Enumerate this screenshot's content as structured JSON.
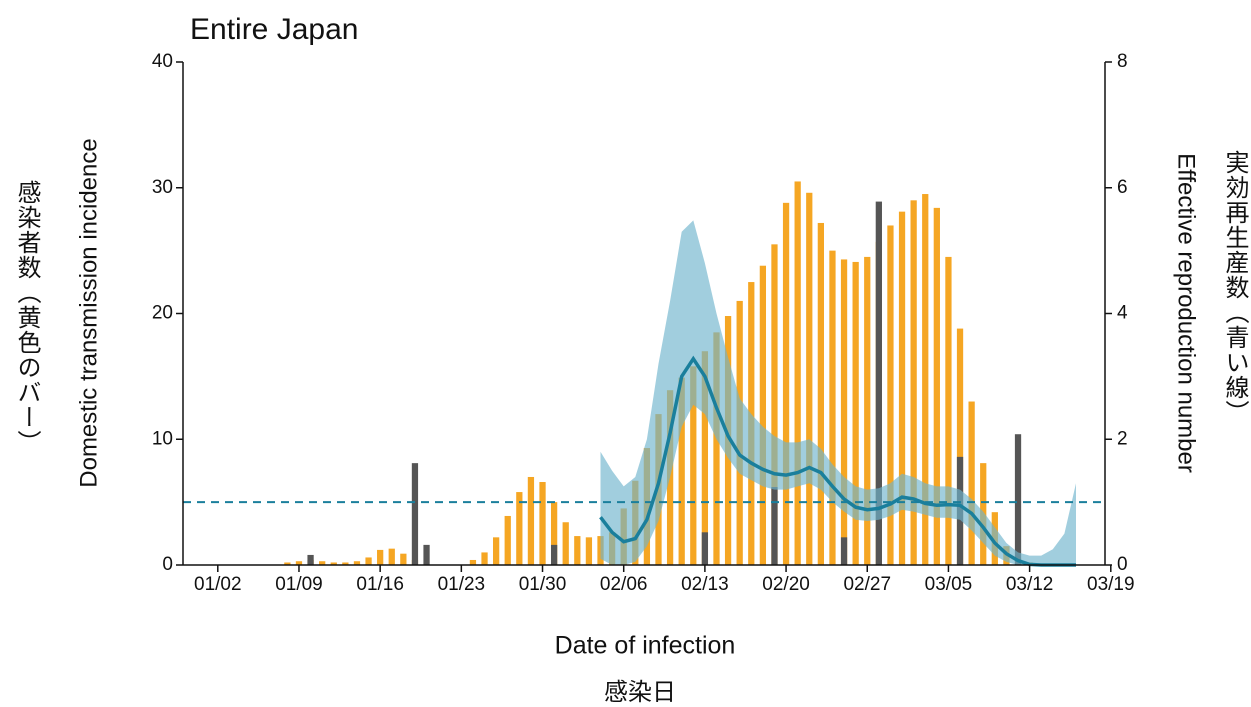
{
  "chart_data": {
    "type": "bar",
    "title": "Entire Japan",
    "ylabel": "Domestic transmission incidence",
    "ylabel_ja": "感染者数（黄色のバー）",
    "y2label": "Effective reproduction number",
    "y2label_ja": "実効再生産数（青い線）",
    "xlabel": "Date of infection",
    "xlabel_ja": "感染日",
    "xlim": [
      -3,
      76.5
    ],
    "xticks": [
      {
        "value": 0,
        "label": "01/02"
      },
      {
        "value": 7,
        "label": "01/09"
      },
      {
        "value": 14,
        "label": "01/16"
      },
      {
        "value": 21,
        "label": "01/23"
      },
      {
        "value": 28,
        "label": "01/30"
      },
      {
        "value": 35,
        "label": "02/06"
      },
      {
        "value": 42,
        "label": "02/13"
      },
      {
        "value": 49,
        "label": "02/20"
      },
      {
        "value": 56,
        "label": "02/27"
      },
      {
        "value": 63,
        "label": "03/05"
      },
      {
        "value": 70,
        "label": "03/12"
      },
      {
        "value": 77,
        "label": "03/19"
      }
    ],
    "ylim": [
      0,
      40
    ],
    "yticks": [
      0,
      10,
      20,
      30,
      40
    ],
    "y2lim": [
      0,
      8
    ],
    "y2ticks": [
      0,
      2,
      4,
      6,
      8
    ],
    "reference_line": {
      "value": 1,
      "axis": "y2",
      "color": "#1a7f9c"
    },
    "series": [
      {
        "type": "bar",
        "color": "#f5a623",
        "x": [
          6,
          7,
          8,
          9,
          10,
          11,
          12,
          13,
          14,
          15,
          16,
          17,
          22,
          23,
          24,
          25,
          26,
          27,
          28,
          29,
          30,
          31,
          32,
          33,
          34,
          35,
          36,
          37,
          38,
          39,
          40,
          41,
          42,
          43,
          44,
          45,
          46,
          47,
          48,
          49,
          50,
          51,
          52,
          53,
          54,
          55,
          56,
          57,
          58,
          59,
          60,
          61,
          62,
          63,
          64,
          65,
          66,
          67,
          68,
          69,
          70
        ],
        "values": [
          0.2,
          0.3,
          0.4,
          0.3,
          0.2,
          0.2,
          0.3,
          0.6,
          1.2,
          1.3,
          0.9,
          0.4,
          0.4,
          1.0,
          2.2,
          3.9,
          5.8,
          7.0,
          6.6,
          5.0,
          3.4,
          2.3,
          2.2,
          2.3,
          2.6,
          4.5,
          6.7,
          9.3,
          12,
          13.9,
          14.9,
          15.8,
          17,
          18.5,
          19.8,
          21,
          22.5,
          23.8,
          25.5,
          28.8,
          30.5,
          29.6,
          27.2,
          25,
          24.3,
          24.1,
          24.5,
          25.7,
          27,
          28.1,
          29,
          29.5,
          28.4,
          24.5,
          18.8,
          13,
          8.1,
          4.2,
          1.5,
          0.5,
          0.2
        ]
      },
      {
        "type": "bar",
        "color": "#555555",
        "x": [
          8,
          17,
          18,
          29,
          42,
          48,
          54,
          57,
          64,
          69
        ],
        "values": [
          0.8,
          8.1,
          1.6,
          1.6,
          2.6,
          6.2,
          2.2,
          28.9,
          8.6,
          10.4
        ]
      },
      {
        "type": "band",
        "axis": "y2",
        "color": "#6fb3cc",
        "x": [
          33,
          34,
          35,
          36,
          37,
          38,
          39,
          40,
          41,
          42,
          43,
          44,
          45,
          46,
          47,
          48,
          49,
          50,
          51,
          52,
          53,
          54,
          55,
          56,
          57,
          58,
          59,
          60,
          61,
          62,
          63,
          64,
          65,
          66,
          67,
          68,
          69,
          70,
          71,
          72,
          73,
          74
        ],
        "lower": [
          0.1,
          0,
          0,
          0.05,
          0.3,
          0.7,
          1.4,
          2.2,
          2.55,
          2.4,
          2.0,
          1.7,
          1.45,
          1.35,
          1.25,
          1.2,
          1.2,
          1.25,
          1.3,
          1.2,
          1.0,
          0.85,
          0.72,
          0.7,
          0.72,
          0.78,
          0.88,
          0.85,
          0.8,
          0.75,
          0.75,
          0.72,
          0.55,
          0.35,
          0.15,
          0.05,
          0,
          0,
          0,
          0,
          0,
          0
        ],
        "upper": [
          1.8,
          1.5,
          1.25,
          1.4,
          2.0,
          3.2,
          4.2,
          5.3,
          5.48,
          4.8,
          4.0,
          3.3,
          2.65,
          2.4,
          2.2,
          2.05,
          1.95,
          1.95,
          2.0,
          1.85,
          1.6,
          1.4,
          1.25,
          1.2,
          1.22,
          1.3,
          1.45,
          1.4,
          1.3,
          1.25,
          1.25,
          1.2,
          1.05,
          0.85,
          0.6,
          0.35,
          0.2,
          0.15,
          0.15,
          0.25,
          0.5,
          1.3
        ]
      },
      {
        "type": "line",
        "axis": "y2",
        "color": "#1a7f9c",
        "x": [
          33,
          34,
          35,
          36,
          37,
          38,
          39,
          40,
          41,
          42,
          43,
          44,
          45,
          46,
          47,
          48,
          49,
          50,
          51,
          52,
          53,
          54,
          55,
          56,
          57,
          58,
          59,
          60,
          61,
          62,
          63,
          64,
          65,
          66,
          67,
          68,
          69,
          70,
          71,
          72,
          73,
          74
        ],
        "values": [
          0.76,
          0.52,
          0.37,
          0.42,
          0.72,
          1.3,
          2.1,
          3.0,
          3.28,
          3.0,
          2.5,
          2.05,
          1.75,
          1.62,
          1.52,
          1.45,
          1.43,
          1.47,
          1.55,
          1.47,
          1.25,
          1.05,
          0.92,
          0.88,
          0.9,
          0.97,
          1.08,
          1.05,
          0.98,
          0.95,
          0.96,
          0.95,
          0.82,
          0.6,
          0.35,
          0.18,
          0.07,
          0.01,
          0,
          0,
          0,
          0
        ]
      }
    ]
  }
}
